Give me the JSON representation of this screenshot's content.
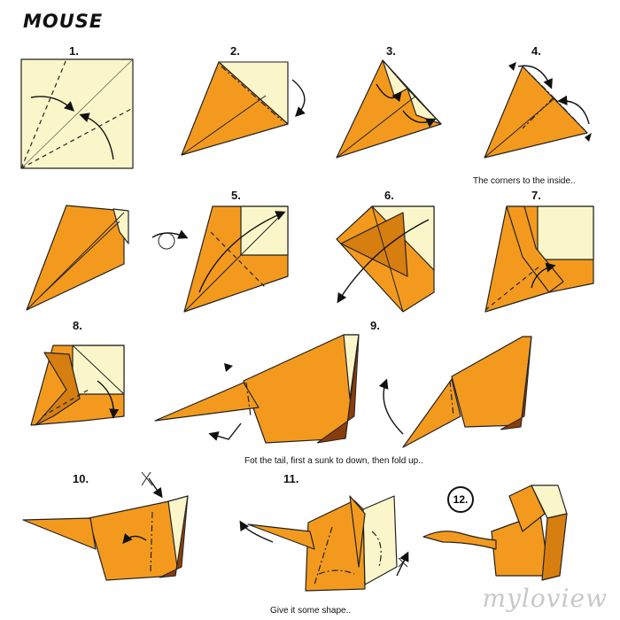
{
  "title": "MOUSE",
  "steps": {
    "s1": "1.",
    "s2": "2.",
    "s3": "3.",
    "s4": "4.",
    "s5": "5.",
    "s6": "6.",
    "s7": "7.",
    "s8": "8.",
    "s9": "9.",
    "s10": "10.",
    "s11": "11.",
    "s12": "12."
  },
  "captions": {
    "corners": "The corners to the inside..",
    "tail": "Fot the tail, first a sunk to down, then fold up..",
    "shape": "Give it some shape.."
  },
  "watermark": "myloview",
  "colors": {
    "paper_front": "#f39a1e",
    "paper_back": "#fbf6c9",
    "paper_shadow": "#d77e10"
  }
}
